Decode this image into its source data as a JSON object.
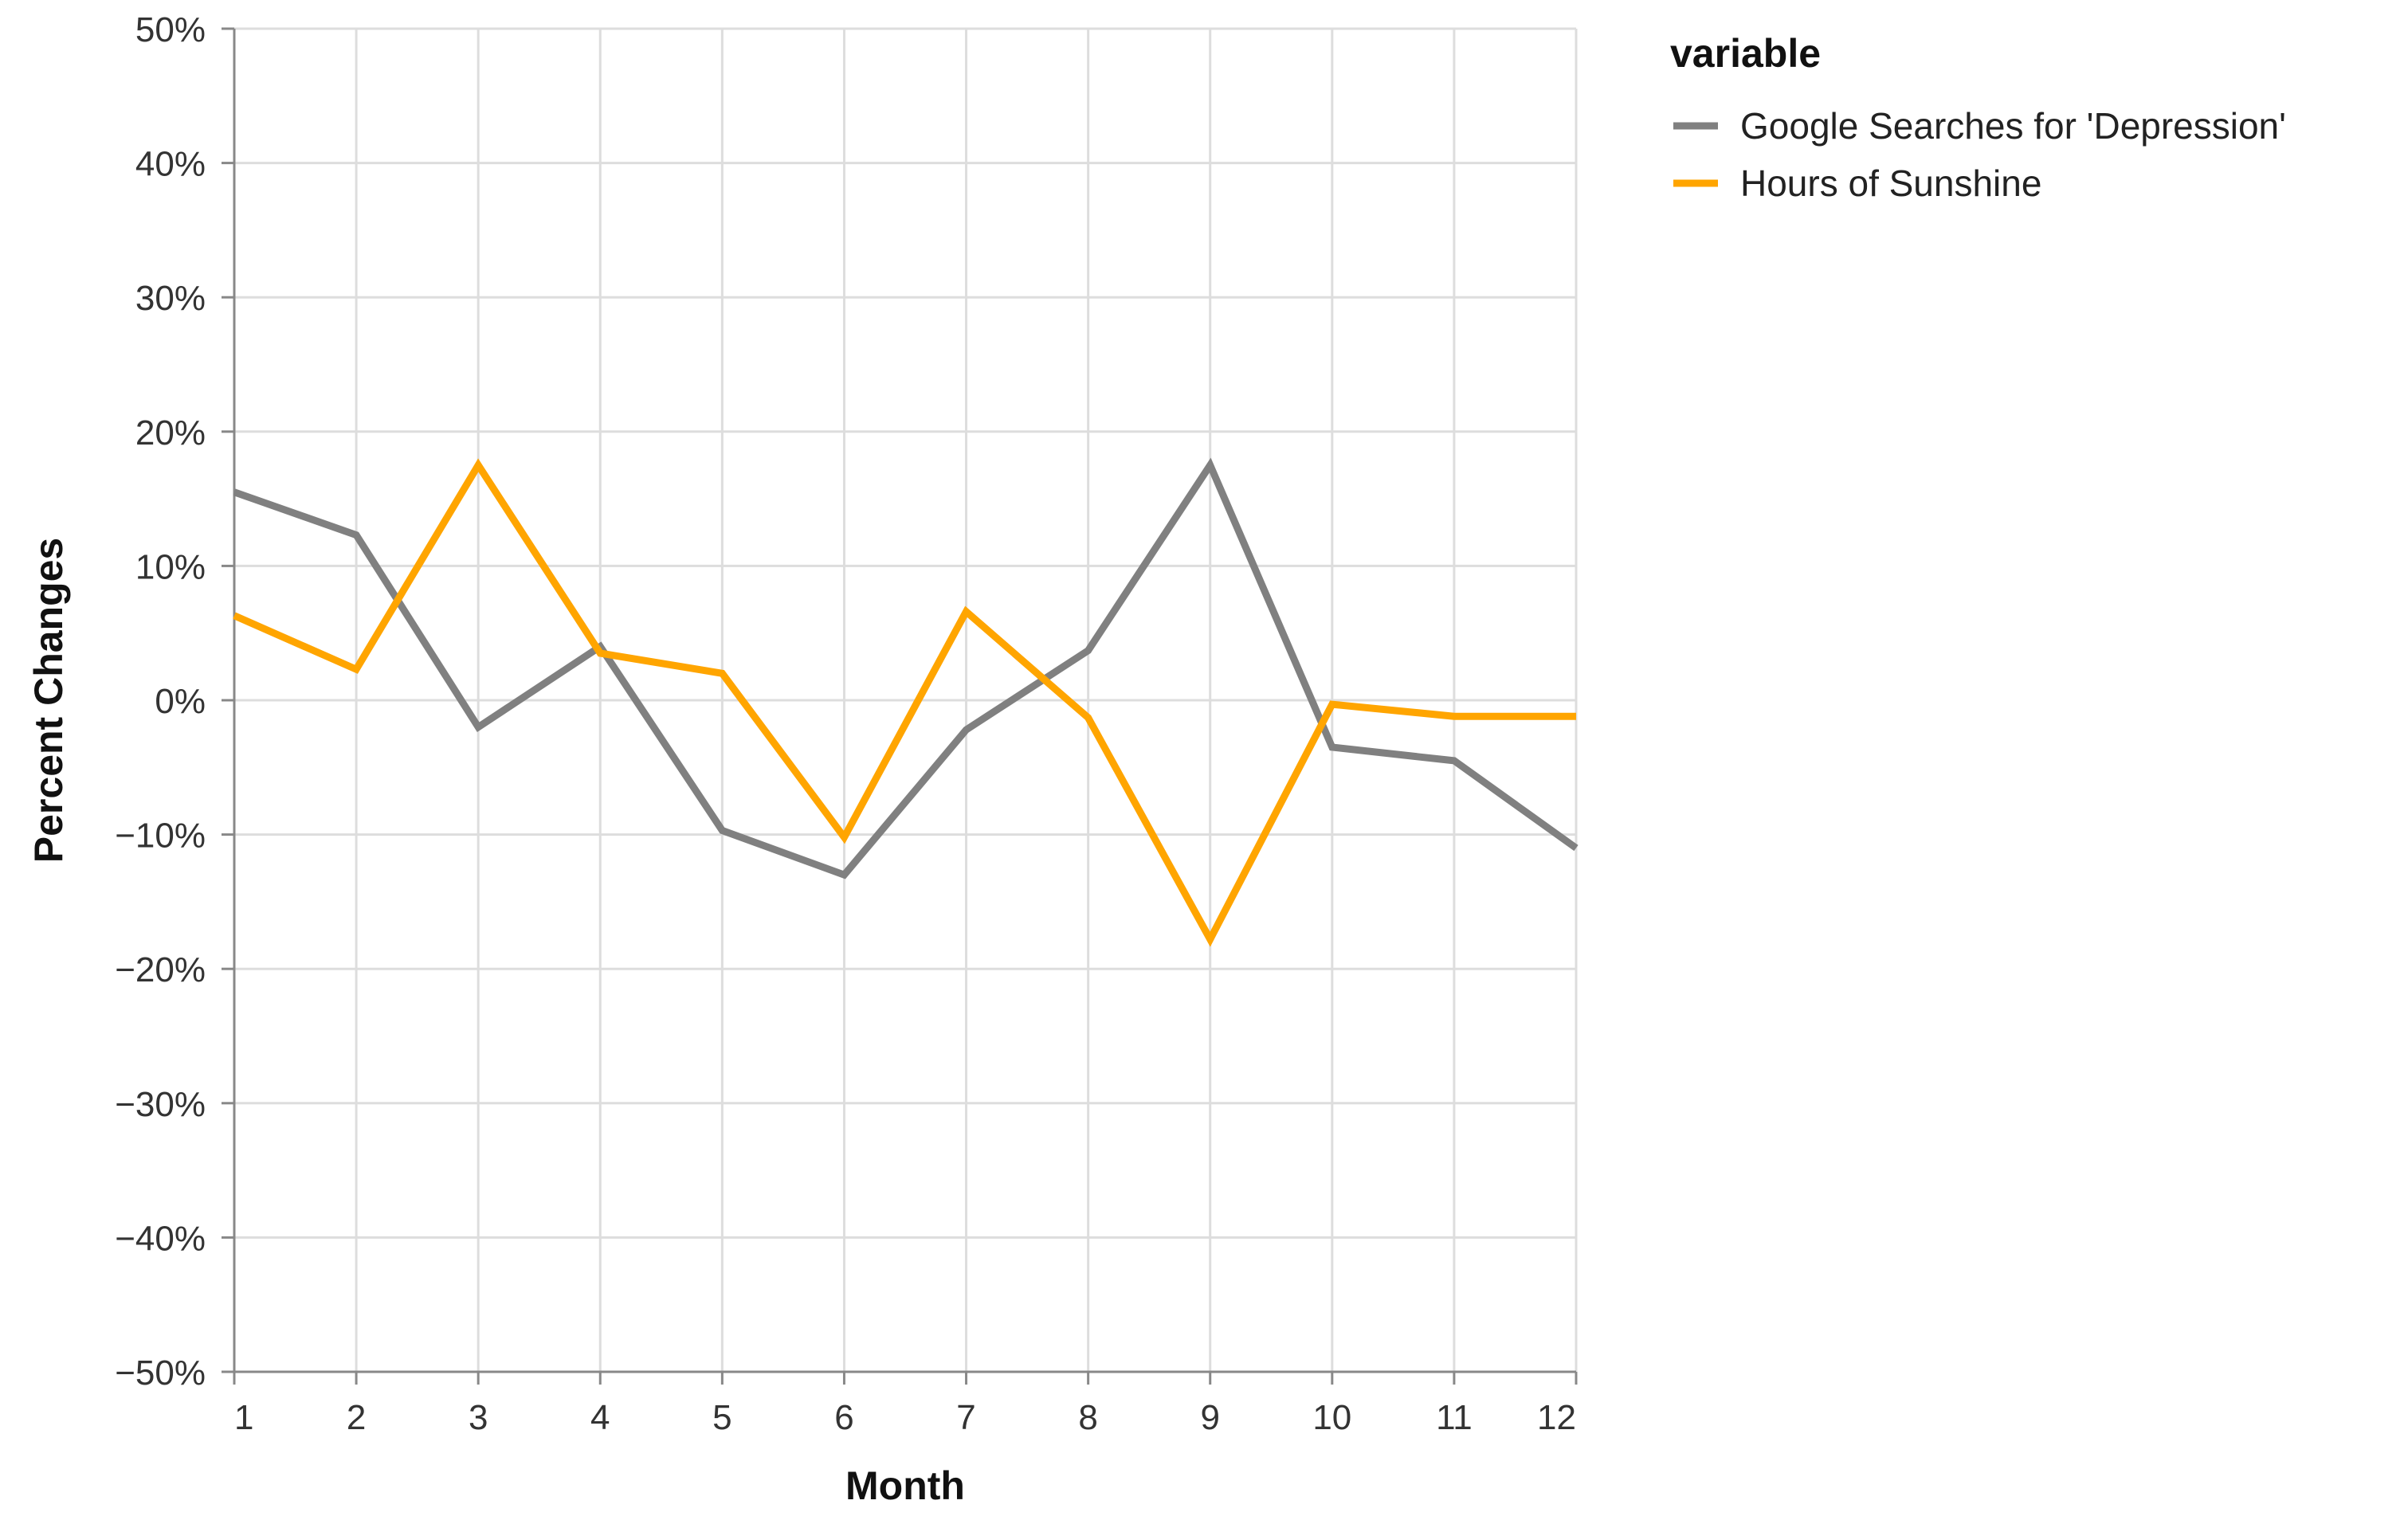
{
  "chart_data": {
    "type": "line",
    "xlabel": "Month",
    "ylabel": "Percent Changes",
    "x": [
      1,
      2,
      3,
      4,
      5,
      6,
      7,
      8,
      9,
      10,
      11,
      12
    ],
    "ylim": [
      -50,
      50
    ],
    "y_ticks": [
      50,
      40,
      30,
      20,
      10,
      0,
      -10,
      -20,
      -30,
      -40,
      -50
    ],
    "y_tick_labels": [
      "50%",
      "40%",
      "30%",
      "20%",
      "10%",
      "0%",
      "−10%",
      "−20%",
      "−30%",
      "−40%",
      "−50%"
    ],
    "x_tick_labels": [
      "1",
      "2",
      "3",
      "4",
      "5",
      "6",
      "7",
      "8",
      "9",
      "10",
      "11",
      "12"
    ],
    "grid": true,
    "legend": {
      "title": "variable",
      "placement": "top-right outside"
    },
    "series": [
      {
        "name": "Google Searches for 'Depression'",
        "color": "#808080",
        "values": [
          15.5,
          12.3,
          -2.0,
          4.0,
          -9.7,
          -13.0,
          -2.2,
          3.7,
          17.5,
          -3.5,
          -4.5,
          -11.0
        ]
      },
      {
        "name": "Hours of Sunshine",
        "color": "#FFA500",
        "values": [
          6.3,
          2.3,
          17.5,
          3.5,
          2.0,
          -10.2,
          6.6,
          -1.3,
          -17.8,
          -0.3,
          -1.2,
          -1.2
        ]
      }
    ]
  }
}
